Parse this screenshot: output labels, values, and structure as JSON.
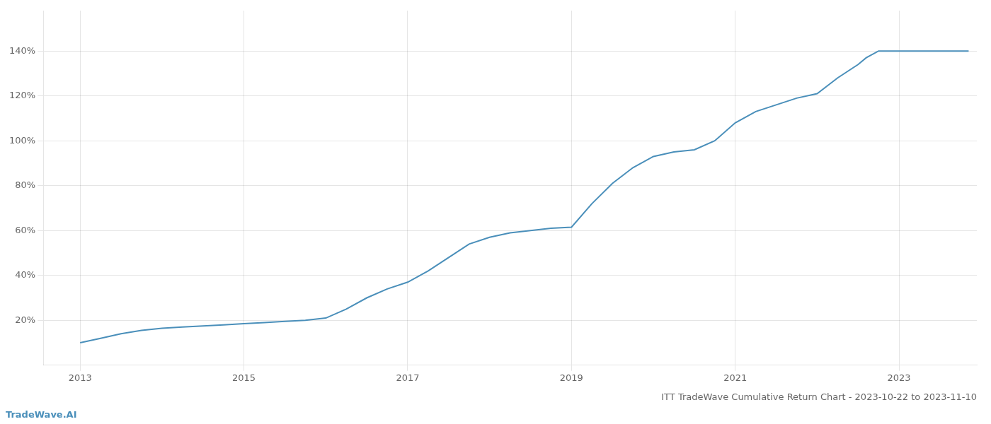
{
  "chart_data": {
    "type": "line",
    "title": "ITT TradeWave Cumulative Return Chart - 2023-10-22 to 2023-11-10",
    "annotations": [
      "TradeWave.AI"
    ],
    "color": "#4a8fba",
    "x": [
      2013.0,
      2013.25,
      2013.5,
      2013.75,
      2014.0,
      2014.25,
      2014.5,
      2014.75,
      2015.0,
      2015.25,
      2015.5,
      2015.75,
      2016.0,
      2016.25,
      2016.5,
      2016.75,
      2017.0,
      2017.25,
      2017.5,
      2017.75,
      2018.0,
      2018.25,
      2018.5,
      2018.75,
      2019.0,
      2019.25,
      2019.5,
      2019.75,
      2020.0,
      2020.25,
      2020.5,
      2020.75,
      2021.0,
      2021.25,
      2021.5,
      2021.75,
      2022.0,
      2022.25,
      2022.5,
      2022.6,
      2022.75,
      2023.0,
      2023.5,
      2023.85
    ],
    "values": [
      10,
      12,
      14,
      15.5,
      16.5,
      17,
      17.5,
      18,
      18.5,
      19,
      19.5,
      20,
      21,
      25,
      30,
      34,
      37,
      42,
      48,
      54,
      57,
      59,
      60,
      61,
      61.5,
      72,
      81,
      88,
      93,
      95,
      96,
      100,
      108,
      113,
      116,
      119,
      121,
      128,
      134,
      137,
      140,
      140,
      140,
      140
    ],
    "xlim": [
      2012.55,
      2023.95
    ],
    "xticks": [
      2013,
      2015,
      2017,
      2019,
      2021,
      2023
    ],
    "ylim": [
      0,
      158
    ],
    "yticks": [
      {
        "value": 20,
        "label": "20%"
      },
      {
        "value": 40,
        "label": "40%"
      },
      {
        "value": 60,
        "label": "60%"
      },
      {
        "value": 80,
        "label": "80%"
      },
      {
        "value": 100,
        "label": "100%"
      },
      {
        "value": 120,
        "label": "120%"
      },
      {
        "value": 140,
        "label": "140%"
      }
    ],
    "grid": true
  }
}
